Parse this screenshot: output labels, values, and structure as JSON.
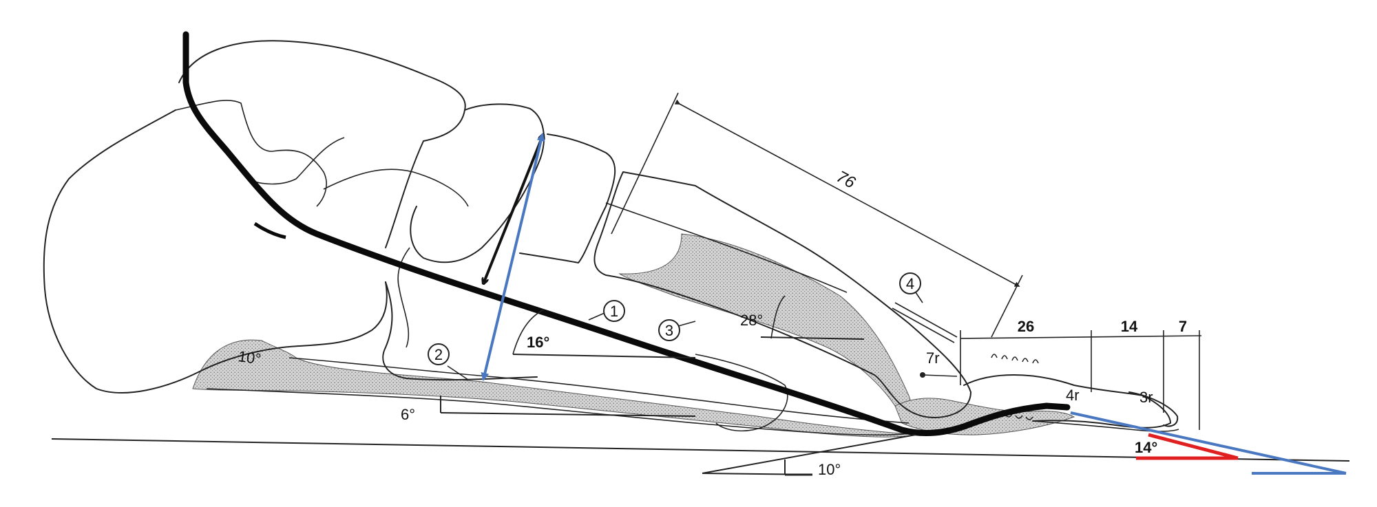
{
  "diagram": {
    "dimensions": {
      "d76": "76",
      "d26": "26",
      "d14": "14",
      "d7": "7"
    },
    "angles": {
      "a16": "16°",
      "a28": "28°",
      "a6": "6°",
      "a10": "10°",
      "a14": "14°",
      "heel_mark": "10°"
    },
    "radii": {
      "r7": "7r",
      "r4": "4r",
      "r3": "3r"
    },
    "markers": [
      "1",
      "2",
      "3",
      "4"
    ],
    "colors": {
      "line": "#222222",
      "heavy_line": "#0a0a0a",
      "shading": "#bdbdbd",
      "blue_annotation": "#4a78c0",
      "red_annotation": "#e02020",
      "black_arrow": "#111111"
    }
  }
}
